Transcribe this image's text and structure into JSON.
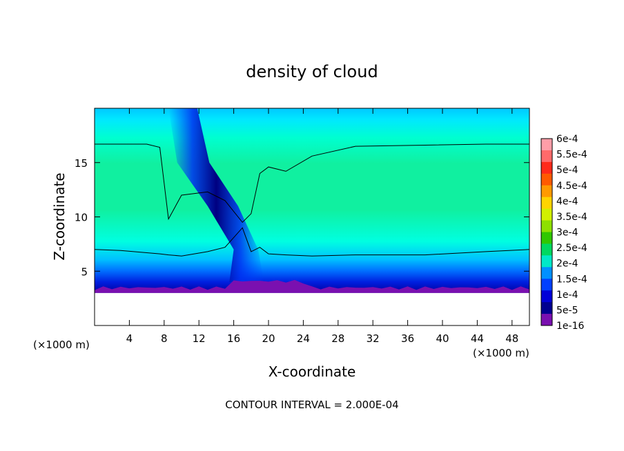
{
  "chart_data": {
    "type": "heatmap",
    "title": "density of cloud",
    "xlabel": "X-coordinate",
    "ylabel": "Z-coordinate",
    "x_unit_left": "(×1000 m)",
    "x_unit_right": "(×1000 m)",
    "x_ticks": [
      "4",
      "8",
      "12",
      "16",
      "20",
      "24",
      "28",
      "32",
      "36",
      "40",
      "44",
      "48"
    ],
    "y_ticks": [
      "5",
      "10",
      "15"
    ],
    "xlim": [
      0,
      50
    ],
    "ylim": [
      0,
      20
    ],
    "footer": "CONTOUR INTERVAL = 2.000E-04",
    "colorbar": {
      "labels": [
        "6e-4",
        "5.5e-4",
        "5e-4",
        "4.5e-4",
        "4e-4",
        "3.5e-4",
        "3e-4",
        "2.5e-4",
        "2e-4",
        "1.5e-4",
        "1e-4",
        "5e-5",
        "1e-16"
      ],
      "colors": [
        "#ff9ea8",
        "#ff6a6a",
        "#ff2a1a",
        "#ff5a00",
        "#ff9a00",
        "#ffd400",
        "#d2f000",
        "#8ee000",
        "#30c800",
        "#00d860",
        "#00e8c8",
        "#0090ff",
        "#0040ff",
        "#0000d8",
        "#000090",
        "#7a10b0"
      ]
    },
    "contour_level": "2e-4",
    "cloud_base_z": 3.0,
    "cloud_top_z": 20,
    "region_values": {
      "outer_layer": "1.5e-4",
      "core": "2.5e-4",
      "updraft_column": "5e-5",
      "cloud_base_edge": "1e-16"
    },
    "updraft_x": 10,
    "contour_upper_z": [
      16.7,
      16.7,
      16.7,
      16.4,
      9.8,
      12.0,
      12.3,
      11.5,
      9.5,
      10.3,
      14.0,
      14.6,
      14.2,
      15.6,
      16.5,
      16.6,
      16.7,
      16.7
    ],
    "contour_lower_z": [
      7.0,
      6.9,
      6.7,
      6.6,
      6.5,
      6.4,
      6.8,
      7.2,
      9.0,
      6.8,
      7.2,
      6.6,
      6.5,
      6.4,
      6.5,
      6.5,
      6.8,
      7.0
    ],
    "contour_x": [
      0,
      3,
      6,
      7.5,
      8.5,
      10,
      13,
      15,
      17,
      18,
      19,
      20,
      22,
      25,
      30,
      38,
      45,
      50
    ]
  }
}
